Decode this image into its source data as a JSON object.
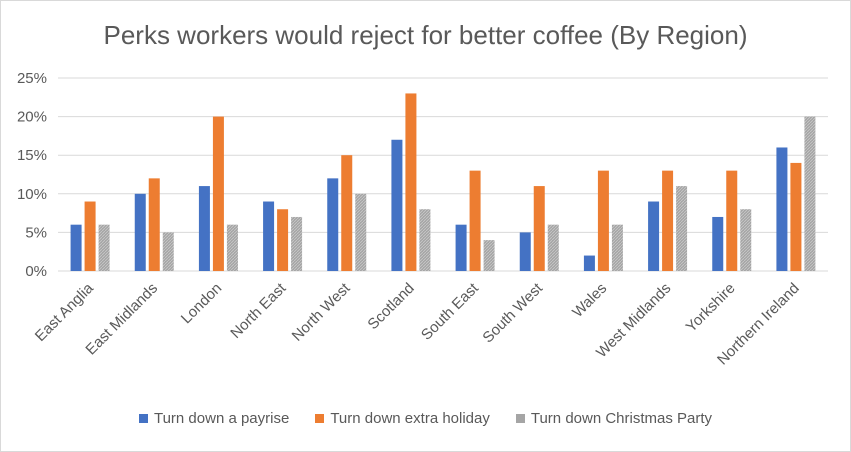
{
  "chart_data": {
    "type": "bar",
    "title": "Perks workers would reject for better coffee (By Region)",
    "xlabel": "",
    "ylabel": "",
    "ylim": [
      0,
      25
    ],
    "yticks": [
      "0%",
      "5%",
      "10%",
      "15%",
      "20%",
      "25%"
    ],
    "grid": true,
    "legend_position": "bottom",
    "categories": [
      "East Anglia",
      "East Midlands",
      "London",
      "North East",
      "North West",
      "Scotland",
      "South East",
      "South West",
      "Wales",
      "West Midlands",
      "Yorkshire",
      "Northern Ireland"
    ],
    "series": [
      {
        "name": "Turn down a payrise",
        "color": "#4472c4",
        "values": [
          6,
          10,
          11,
          9,
          12,
          17,
          6,
          5,
          2,
          9,
          7,
          16
        ]
      },
      {
        "name": "Turn down extra holiday",
        "color": "#ed7d31",
        "values": [
          9,
          12,
          20,
          8,
          15,
          23,
          13,
          11,
          13,
          13,
          13,
          14
        ]
      },
      {
        "name": "Turn down Christmas Party",
        "color": "#a5a5a5",
        "values": [
          6,
          5,
          6,
          7,
          10,
          8,
          4,
          6,
          6,
          11,
          8,
          20
        ]
      }
    ]
  }
}
